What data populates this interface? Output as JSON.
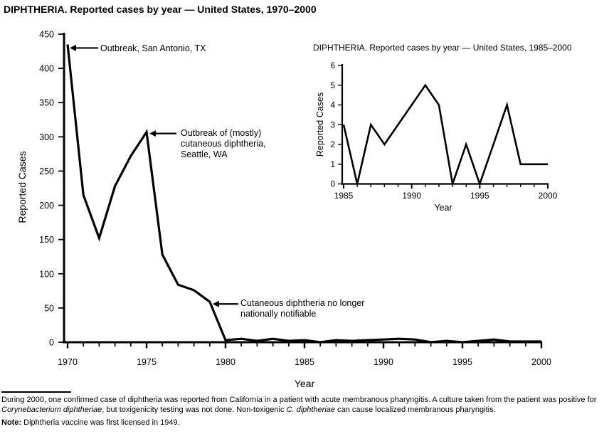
{
  "chart_data": [
    {
      "type": "line",
      "name": "main",
      "title": "DIPHTHERIA. Reported cases by year — United States, 1970–2000",
      "xlabel": "Year",
      "ylabel": "Reported Cases",
      "x": [
        1970,
        1971,
        1972,
        1973,
        1974,
        1975,
        1976,
        1977,
        1978,
        1979,
        1980,
        1981,
        1982,
        1983,
        1984,
        1985,
        1986,
        1987,
        1988,
        1989,
        1990,
        1991,
        1992,
        1993,
        1994,
        1995,
        1996,
        1997,
        1998,
        1999,
        2000
      ],
      "values": [
        435,
        215,
        152,
        228,
        272,
        307,
        128,
        84,
        76,
        59,
        3,
        5,
        2,
        5,
        2,
        3,
        0,
        3,
        2,
        3,
        4,
        5,
        4,
        0,
        2,
        0,
        2,
        4,
        1,
        1,
        1
      ],
      "xlim": [
        1970,
        2000
      ],
      "ylim": [
        0,
        450
      ],
      "yticks": [
        0,
        50,
        100,
        150,
        200,
        250,
        300,
        350,
        400,
        450
      ],
      "xtick_labels": [
        1970,
        1975,
        1980,
        1985,
        1990,
        1995,
        2000
      ],
      "grid": false,
      "legend": false,
      "line_color": "#000000",
      "annotations": [
        {
          "label": "Outbreak, San Antonio, TX",
          "year": 1970,
          "value": 435
        },
        {
          "label": "Outbreak of (mostly)\ncutaneous diphtheria,\nSeattle, WA",
          "year": 1975,
          "value": 307
        },
        {
          "label": "Cutaneous diphtheria no longer\nnationally notifiable",
          "year": 1979,
          "value": 59
        }
      ]
    },
    {
      "type": "line",
      "name": "inset",
      "title": "DIPHTHERIA. Reported cases by year — United States, 1985–2000",
      "xlabel": "Year",
      "ylabel": "Reported Cases",
      "x": [
        1985,
        1986,
        1987,
        1988,
        1989,
        1990,
        1991,
        1992,
        1993,
        1994,
        1995,
        1996,
        1997,
        1998,
        1999,
        2000
      ],
      "values": [
        3,
        0,
        3,
        2,
        3,
        4,
        5,
        4,
        0,
        2,
        0,
        2,
        4,
        1,
        1,
        1
      ],
      "xlim": [
        1985,
        2000
      ],
      "ylim": [
        0,
        6
      ],
      "yticks": [
        0,
        1,
        2,
        3,
        4,
        5,
        6
      ],
      "xtick_labels": [
        1985,
        1990,
        1995,
        2000
      ],
      "grid": false,
      "legend": false,
      "line_color": "#000000",
      "annotations": []
    }
  ],
  "footnotes": {
    "paragraph": [
      {
        "text": "During 2000, one confirmed case of diphtheria was reported from California in a patient with acute membranous pharyngitis. A culture taken from the patient was positive for ",
        "style": "normal"
      },
      {
        "text": "Corynebacterium diphtheriae",
        "style": "italic"
      },
      {
        "text": ", but toxigenicity testing was not done. Non-toxigenic ",
        "style": "normal"
      },
      {
        "text": "C. diphtheriae",
        "style": "italic"
      },
      {
        "text": " can cause localized membranous pharyngitis.",
        "style": "normal"
      }
    ],
    "note": [
      {
        "text": "Note:",
        "style": "bold"
      },
      {
        "text": " Diphtheria vaccine was first licensed in 1949.",
        "style": "normal"
      }
    ]
  }
}
